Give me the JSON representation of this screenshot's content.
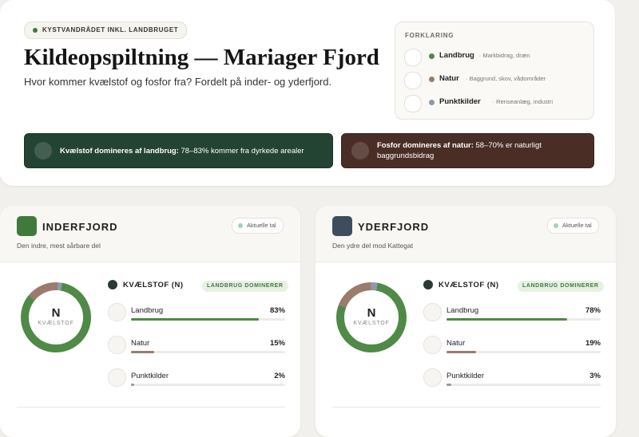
{
  "header": {
    "badge": "KYSTVANDRÅDET INKL. LANDBRUGET",
    "title": "Kildeopspiltning — Mariager Fjord",
    "subtitle": "Hvor kommer kvælstof og fosfor fra? Fordelt på inder- og yderfjord."
  },
  "legend": {
    "title": "FORKLARING",
    "items": [
      {
        "name": "Landbrug",
        "desc": "· Markbidrag, dræn",
        "color": "#4f8a46"
      },
      {
        "name": "Natur",
        "desc": "· Baggrund, skov, vådområder",
        "color": "#9a7b6c"
      },
      {
        "name": "Punktkilder",
        "desc": "· Renseanlæg, industri",
        "color": "#8b9aab"
      }
    ]
  },
  "callouts": [
    {
      "bold": "Kvælstof domineres af landbrug:",
      "text": "78–83% kommer fra dyrkede arealer"
    },
    {
      "bold": "Fosfor domineres af natur:",
      "text": "58–70% er naturligt baggrundsbidrag"
    }
  ],
  "panels": [
    {
      "title": "INDERFJORD",
      "subtitle": "Den indre, mest sårbare del",
      "status": "Aktuelle tal",
      "donut_letter": "N",
      "donut_label": "KVÆLSTOF",
      "section": "KVÆLSTOF (N)",
      "badge": "LANDBRUG DOMINERER",
      "categories": [
        "Landbrug",
        "Natur",
        "Punktkilder"
      ],
      "values": [
        83,
        15,
        2
      ],
      "value_labels": [
        "83%",
        "15%",
        "2%"
      ]
    },
    {
      "title": "YDERFJORD",
      "subtitle": "Den ydre del mod Kattegat",
      "status": "Aktuelle tal",
      "donut_letter": "N",
      "donut_label": "KVÆLSTOF",
      "section": "KVÆLSTOF (N)",
      "badge": "LANDBRUG DOMINERER",
      "categories": [
        "Landbrug",
        "Natur",
        "Punktkilder"
      ],
      "values": [
        78,
        19,
        3
      ],
      "value_labels": [
        "78%",
        "19%",
        "3%"
      ]
    }
  ]
}
